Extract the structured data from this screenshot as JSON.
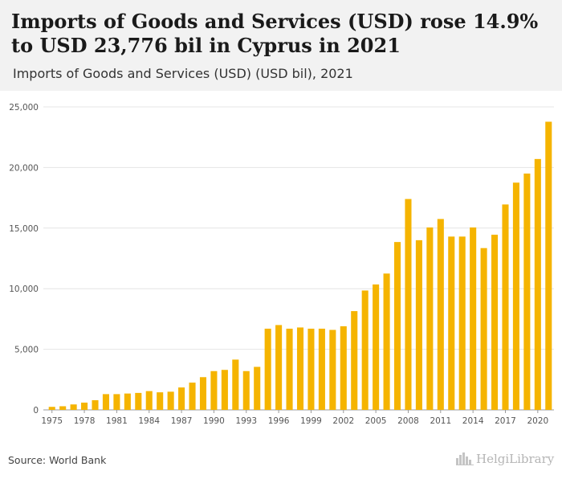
{
  "header": {
    "title": "Imports of Goods and Services (USD) rose 14.9% to USD 23,776 bil in Cyprus in 2021",
    "subtitle": "Imports of Goods and Services (USD) (USD bil), 2021"
  },
  "footer": {
    "source": "Source: World Bank",
    "brand": "HelgiLibrary",
    "brand_icon": "city-skyline-icon"
  },
  "colors": {
    "bar": "#f5b400",
    "grid": "#e4e4e4",
    "axis": "#999999",
    "tick_text": "#555555"
  },
  "chart_data": {
    "type": "bar",
    "title": "Imports of Goods and Services (USD) rose 14.9% to USD 23,776 bil in Cyprus in 2021",
    "subtitle": "Imports of Goods and Services (USD) (USD bil), 2021",
    "categories": [
      1975,
      1976,
      1977,
      1978,
      1979,
      1980,
      1981,
      1982,
      1983,
      1984,
      1985,
      1986,
      1987,
      1988,
      1989,
      1990,
      1991,
      1992,
      1993,
      1994,
      1995,
      1996,
      1997,
      1998,
      1999,
      2000,
      2001,
      2002,
      2003,
      2004,
      2005,
      2006,
      2007,
      2008,
      2009,
      2010,
      2011,
      2012,
      2013,
      2014,
      2015,
      2016,
      2017,
      2018,
      2019,
      2020,
      2021
    ],
    "x_tick_labels": [
      "1975",
      "1978",
      "1981",
      "1984",
      "1987",
      "1990",
      "1993",
      "1996",
      "1999",
      "2002",
      "2005",
      "2008",
      "2011",
      "2014",
      "2017",
      "2020"
    ],
    "values": [
      250,
      300,
      450,
      600,
      800,
      1300,
      1300,
      1350,
      1400,
      1550,
      1450,
      1500,
      1850,
      2250,
      2700,
      3200,
      3300,
      4150,
      3200,
      3550,
      6700,
      7000,
      6700,
      6800,
      6700,
      6700,
      6600,
      6900,
      8150,
      9850,
      10350,
      11250,
      13850,
      17400,
      14000,
      15050,
      15750,
      14300,
      14300,
      15050,
      13350,
      14450,
      16950,
      18750,
      19500,
      20700,
      23776
    ],
    "ylim": [
      0,
      25000
    ],
    "y_ticks": [
      0,
      5000,
      10000,
      15000,
      20000,
      25000
    ],
    "y_tick_labels": [
      "0",
      "5,000",
      "10,000",
      "15,000",
      "20,000",
      "25,000"
    ],
    "xlabel": "",
    "ylabel": "",
    "grid": true
  }
}
